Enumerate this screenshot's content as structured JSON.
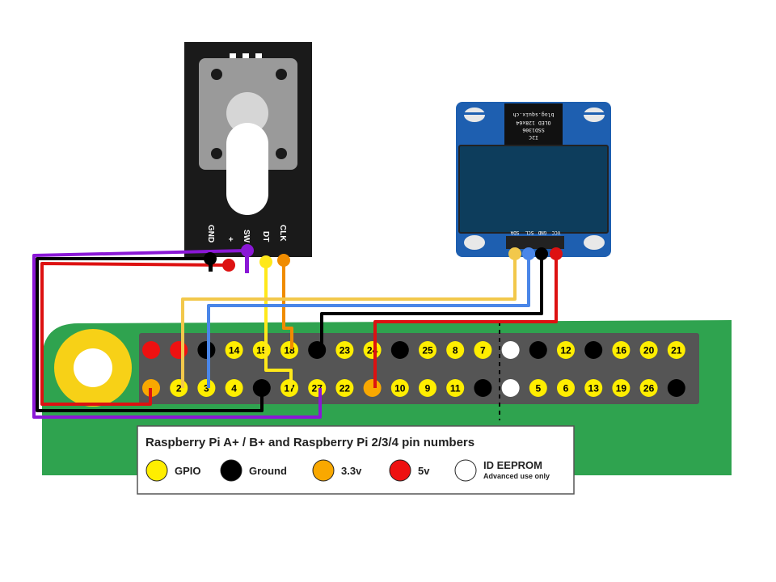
{
  "colors": {
    "gpio": "#ffee00",
    "ground": "#000000",
    "v33": "#f9a800",
    "v5": "#ee1111",
    "eeprom": "#ffffff",
    "board": "#2fa34f",
    "oled_board": "#1e5fb0",
    "wire_purple": "#8a17d6",
    "wire_red": "#dd1111",
    "wire_black": "#000000",
    "wire_yellow": "#ffe81a",
    "wire_orange": "#f08c00",
    "wire_yellow2": "#f2c84b",
    "wire_blue": "#4a86e8"
  },
  "encoder": {
    "labels": [
      "GND",
      "+",
      "SW",
      "DT",
      "CLK"
    ]
  },
  "oled": {
    "labels": [
      "VCC",
      "GND",
      "SCL",
      "SDA"
    ],
    "chip_lines": [
      "blog.squix.ch",
      "OLED 128x64",
      "SSD1306",
      "I2C"
    ]
  },
  "header": {
    "top_row": [
      {
        "type": "v5",
        "label": ""
      },
      {
        "type": "v5",
        "label": ""
      },
      {
        "type": "ground",
        "label": ""
      },
      {
        "type": "gpio",
        "label": "14"
      },
      {
        "type": "gpio",
        "label": "15"
      },
      {
        "type": "gpio",
        "label": "18"
      },
      {
        "type": "ground",
        "label": ""
      },
      {
        "type": "gpio",
        "label": "23"
      },
      {
        "type": "gpio",
        "label": "24"
      },
      {
        "type": "ground",
        "label": ""
      },
      {
        "type": "gpio",
        "label": "25"
      },
      {
        "type": "gpio",
        "label": "8"
      },
      {
        "type": "gpio",
        "label": "7"
      },
      {
        "type": "eeprom",
        "label": ""
      },
      {
        "type": "ground",
        "label": ""
      },
      {
        "type": "gpio",
        "label": "12"
      },
      {
        "type": "ground",
        "label": ""
      },
      {
        "type": "gpio",
        "label": "16"
      },
      {
        "type": "gpio",
        "label": "20"
      },
      {
        "type": "gpio",
        "label": "21"
      }
    ],
    "bottom_row": [
      {
        "type": "v33",
        "label": ""
      },
      {
        "type": "gpio",
        "label": "2"
      },
      {
        "type": "gpio",
        "label": "3"
      },
      {
        "type": "gpio",
        "label": "4"
      },
      {
        "type": "ground",
        "label": ""
      },
      {
        "type": "gpio",
        "label": "17"
      },
      {
        "type": "gpio",
        "label": "27"
      },
      {
        "type": "gpio",
        "label": "22"
      },
      {
        "type": "v33",
        "label": ""
      },
      {
        "type": "gpio",
        "label": "10"
      },
      {
        "type": "gpio",
        "label": "9"
      },
      {
        "type": "gpio",
        "label": "11"
      },
      {
        "type": "ground",
        "label": ""
      },
      {
        "type": "eeprom",
        "label": ""
      },
      {
        "type": "gpio",
        "label": "5"
      },
      {
        "type": "gpio",
        "label": "6"
      },
      {
        "type": "gpio",
        "label": "13"
      },
      {
        "type": "gpio",
        "label": "19"
      },
      {
        "type": "gpio",
        "label": "26"
      },
      {
        "type": "ground",
        "label": ""
      }
    ]
  },
  "legend": {
    "title": "Raspberry Pi A+ / B+ and Raspberry Pi 2/3/4 pin numbers",
    "items": [
      {
        "type": "gpio",
        "label": "GPIO",
        "sub": ""
      },
      {
        "type": "ground",
        "label": "Ground",
        "sub": ""
      },
      {
        "type": "v33",
        "label": "3.3v",
        "sub": ""
      },
      {
        "type": "v5",
        "label": "5v",
        "sub": ""
      },
      {
        "type": "eeprom",
        "label": "ID EEPROM",
        "sub": "Advanced use only"
      }
    ]
  }
}
